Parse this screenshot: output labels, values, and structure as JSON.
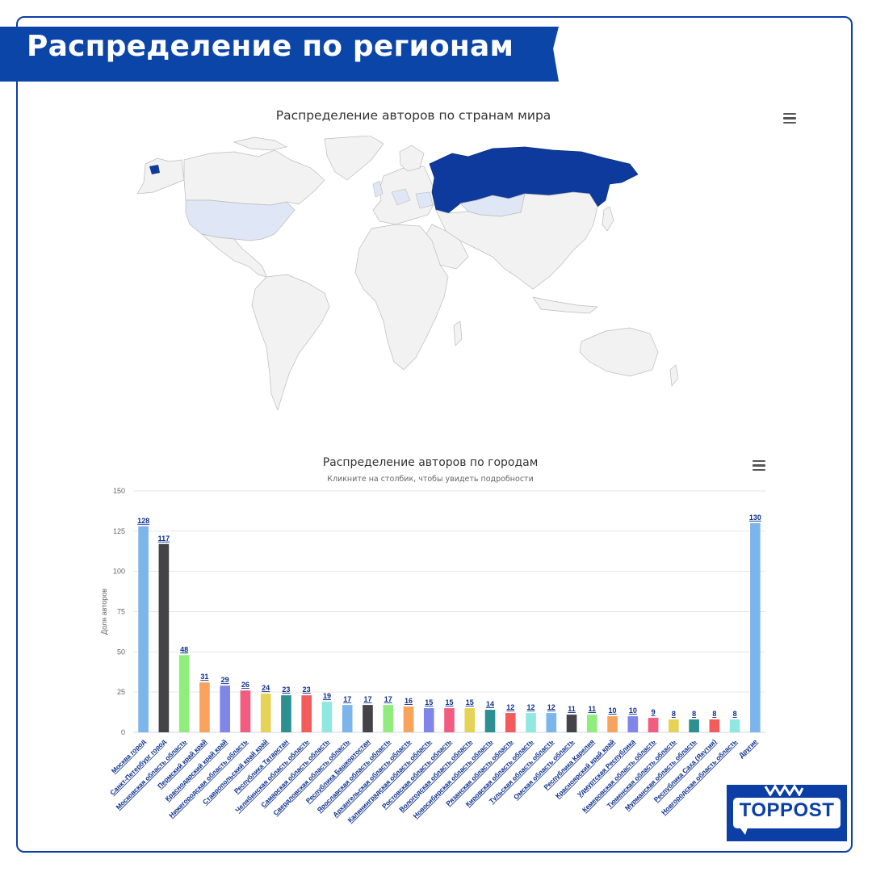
{
  "banner": {
    "title": "Распределение по регионам"
  },
  "map": {
    "title": "Распределение авторов по странам мира"
  },
  "chart_data": {
    "type": "bar",
    "title": "Распределение авторов по городам",
    "subtitle": "Кликните на столбик, чтобы увидеть подробности",
    "ylabel": "Доля авторов",
    "xlabel": "",
    "ylim": [
      0,
      150
    ],
    "yticks": [
      0,
      25,
      50,
      75,
      100,
      125,
      150
    ],
    "grid": true,
    "categories": [
      "Москва город",
      "Санкт-Петербург город",
      "Московская область область",
      "Пермский край край",
      "Краснодарский край край",
      "Нижегородская область область",
      "Ставропольский край край",
      "Республика Татарстан",
      "Челябинская область область",
      "Самарская область область",
      "Свердловская область область",
      "Республика Башкортостан",
      "Ярославская область область",
      "Архангельская область область",
      "Калининградская область область",
      "Ростовская область область",
      "Вологодская область область",
      "Новосибирская область область",
      "Рязанская область область",
      "Кировская область область",
      "Тульская область область",
      "Омская область область",
      "Республика Карелия",
      "Красноярский край край",
      "Удмуртская Республика",
      "Кемеровская область область",
      "Тюменская область область",
      "Мурманская область область",
      "Республика Саха (Якутия)",
      "Новгородская область область",
      "Другие"
    ],
    "values": [
      128,
      117,
      48,
      31,
      29,
      26,
      24,
      23,
      23,
      19,
      17,
      17,
      17,
      16,
      15,
      15,
      15,
      14,
      12,
      12,
      12,
      11,
      11,
      10,
      10,
      9,
      8,
      8,
      8,
      8,
      130
    ],
    "colors": [
      "#7cb5ec",
      "#434348",
      "#90ed7d",
      "#f7a35c",
      "#8085e9",
      "#f15c80",
      "#e4d354",
      "#2b908f",
      "#f45b5b",
      "#91e8e1",
      "#7cb5ec",
      "#434348",
      "#90ed7d",
      "#f7a35c",
      "#8085e9",
      "#f15c80",
      "#e4d354",
      "#2b908f",
      "#f45b5b",
      "#91e8e1",
      "#7cb5ec",
      "#434348",
      "#90ed7d",
      "#f7a35c",
      "#8085e9",
      "#f15c80",
      "#e4d354",
      "#2b908f",
      "#f45b5b",
      "#91e8e1",
      "#7cb5ec"
    ]
  },
  "logo": {
    "text": "TOPPOST"
  },
  "colors": {
    "brand": "#0b45a8",
    "russia": "#0d3a9c",
    "light_country": "#dfe6f5",
    "land": "#f2f2f2"
  },
  "icons": {
    "chart_menu": "menu-icon"
  }
}
